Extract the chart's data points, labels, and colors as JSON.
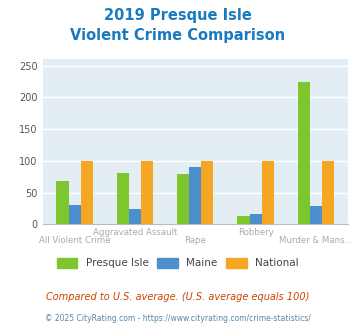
{
  "title_line1": "2019 Presque Isle",
  "title_line2": "Violent Crime Comparison",
  "categories": [
    "All Violent Crime",
    "Aggravated Assault",
    "Rape",
    "Robbery",
    "Murder & Mans..."
  ],
  "presque_isle": [
    68,
    81,
    80,
    14,
    224
  ],
  "maine": [
    30,
    25,
    91,
    17,
    29
  ],
  "national": [
    100,
    100,
    100,
    100,
    100
  ],
  "color_presque_isle": "#7dc62e",
  "color_maine": "#4d8fcc",
  "color_national": "#f5a623",
  "ylim": [
    0,
    260
  ],
  "yticks": [
    0,
    50,
    100,
    150,
    200,
    250
  ],
  "background_color": "#e2eef4",
  "grid_color": "#ffffff",
  "title_color": "#1a7abf",
  "legend_labels": [
    "Presque Isle",
    "Maine",
    "National"
  ],
  "footnote1": "Compared to U.S. average. (U.S. average equals 100)",
  "footnote2": "© 2025 CityRating.com - https://www.cityrating.com/crime-statistics/",
  "footnote1_color": "#cc4400",
  "footnote2_color": "#5588aa",
  "label_color": "#aaaaaa",
  "bar_width": 0.2
}
